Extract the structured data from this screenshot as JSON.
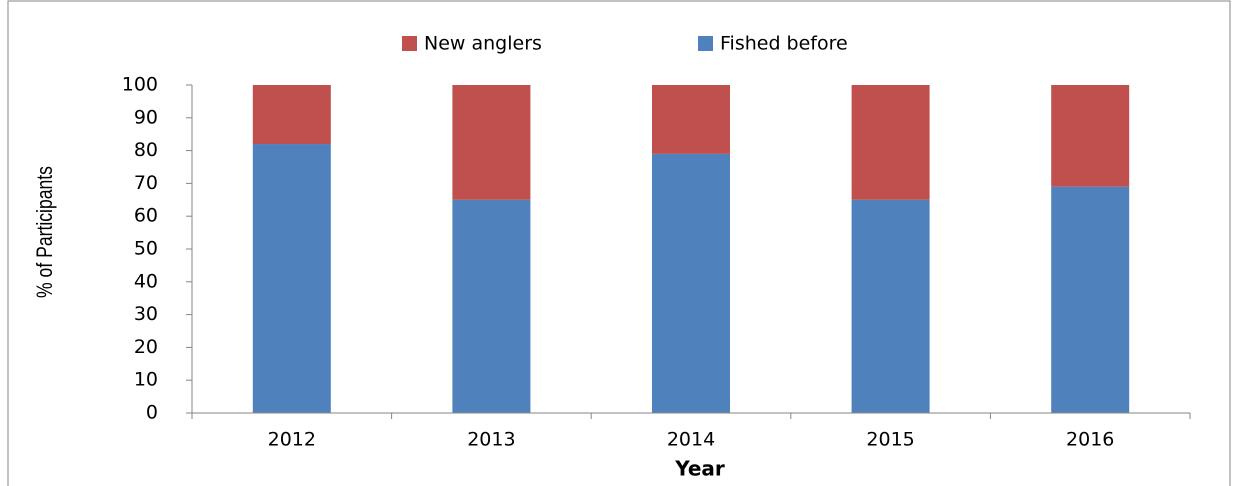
{
  "chart_data": {
    "type": "stacked_bar",
    "categories": [
      "2012",
      "2013",
      "2014",
      "2015",
      "2016"
    ],
    "series": [
      {
        "name": "Fished before",
        "color": "#4f81bd",
        "values": [
          82,
          65,
          79,
          65,
          69
        ]
      },
      {
        "name": "New anglers",
        "color": "#c0504d",
        "values": [
          18,
          35,
          21,
          35,
          31
        ]
      }
    ],
    "ylim": [
      0,
      100
    ],
    "yticks": [
      0,
      10,
      20,
      30,
      40,
      50,
      60,
      70,
      80,
      90,
      100
    ],
    "y_label": "% of Participants",
    "x_label": "Year",
    "legend": "top"
  }
}
